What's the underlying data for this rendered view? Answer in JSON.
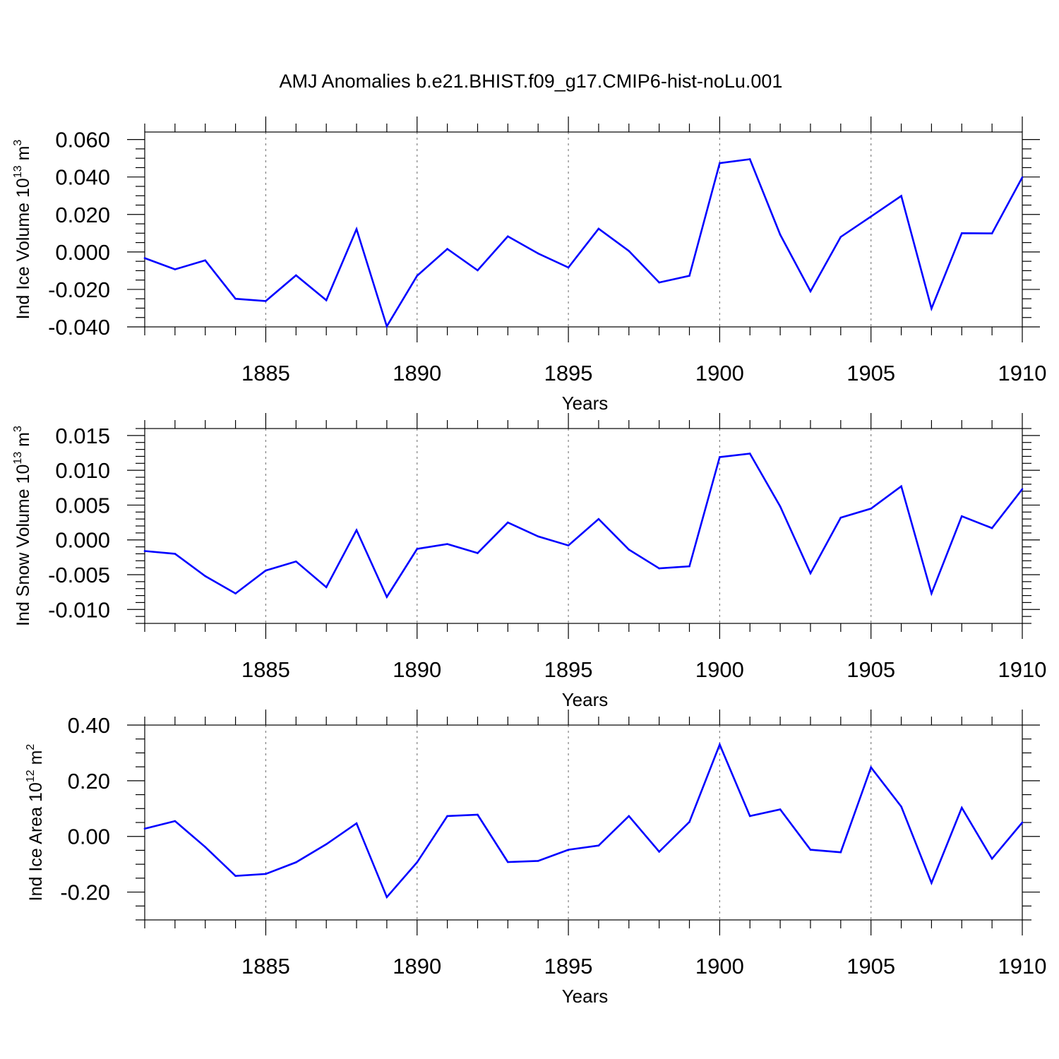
{
  "title": "AMJ Anomalies b.e21.BHIST.f09_g17.CMIP6-hist-noLu.001",
  "colors": {
    "series": "#0000ff",
    "axis": "#000000",
    "grid": "#808080"
  },
  "chart_data": [
    {
      "type": "line",
      "ylabel": "Ind Ice Volume 10",
      "ylabel_exp": "13",
      "ylabel_unit": " m",
      "ylabel_unit_exp": "3",
      "xlabel": "Years",
      "xlim": [
        1881,
        1910
      ],
      "ylim": [
        -0.04,
        0.064
      ],
      "xticks": [
        1885,
        1890,
        1895,
        1900,
        1905,
        1910
      ],
      "yticks": [
        -0.04,
        -0.02,
        0.0,
        0.02,
        0.04,
        0.06
      ],
      "ytick_labels": [
        "-0.040",
        "-0.020",
        "0.000",
        "0.020",
        "0.040",
        "0.060"
      ],
      "y_minor_step": 0.005,
      "grid_x": true,
      "x": [
        1881,
        1882,
        1883,
        1884,
        1885,
        1886,
        1887,
        1888,
        1889,
        1890,
        1891,
        1892,
        1893,
        1894,
        1895,
        1896,
        1897,
        1898,
        1899,
        1900,
        1901,
        1902,
        1903,
        1904,
        1905,
        1906,
        1907,
        1908,
        1909,
        1910
      ],
      "values": [
        -0.0033,
        -0.0093,
        -0.0045,
        -0.025,
        -0.0262,
        -0.0125,
        -0.0258,
        0.0122,
        -0.0397,
        -0.0127,
        0.0016,
        -0.0098,
        0.0083,
        -0.0008,
        -0.0083,
        0.0124,
        0.0005,
        -0.0163,
        -0.0127,
        0.0474,
        0.0495,
        0.0092,
        -0.021,
        0.008,
        0.0189,
        0.0299,
        -0.0302,
        0.01,
        0.0099,
        0.0398
      ]
    },
    {
      "type": "line",
      "ylabel": "Ind Snow Volume 10",
      "ylabel_exp": "13",
      "ylabel_unit": " m",
      "ylabel_unit_exp": "3",
      "xlabel": "Years",
      "xlim": [
        1881,
        1910
      ],
      "ylim": [
        -0.012,
        0.016
      ],
      "xticks": [
        1885,
        1890,
        1895,
        1900,
        1905,
        1910
      ],
      "yticks": [
        -0.01,
        -0.005,
        0.0,
        0.005,
        0.01,
        0.015
      ],
      "ytick_labels": [
        "-0.010",
        "-0.005",
        "0.000",
        "0.005",
        "0.010",
        "0.015"
      ],
      "y_minor_step": 0.001,
      "grid_x": true,
      "x": [
        1881,
        1882,
        1883,
        1884,
        1885,
        1886,
        1887,
        1888,
        1889,
        1890,
        1891,
        1892,
        1893,
        1894,
        1895,
        1896,
        1897,
        1898,
        1899,
        1900,
        1901,
        1902,
        1903,
        1904,
        1905,
        1906,
        1907,
        1908,
        1909,
        1910
      ],
      "values": [
        -0.0016,
        -0.002,
        -0.0052,
        -0.0077,
        -0.0044,
        -0.0031,
        -0.0068,
        0.0014,
        -0.0082,
        -0.0013,
        -0.0006,
        -0.0019,
        0.0025,
        0.0005,
        -0.0008,
        0.003,
        -0.0014,
        -0.0041,
        -0.0038,
        0.0119,
        0.0124,
        0.0048,
        -0.0048,
        0.0032,
        0.0045,
        0.0077,
        -0.0077,
        0.0034,
        0.0017,
        0.0073
      ]
    },
    {
      "type": "line",
      "ylabel": "Ind Ice Area 10",
      "ylabel_exp": "12",
      "ylabel_unit": " m",
      "ylabel_unit_exp": "2",
      "xlabel": "Years",
      "xlim": [
        1881,
        1910
      ],
      "ylim": [
        -0.3,
        0.4
      ],
      "xticks": [
        1885,
        1890,
        1895,
        1900,
        1905,
        1910
      ],
      "yticks": [
        -0.2,
        0.0,
        0.2,
        0.4
      ],
      "ytick_labels": [
        "-0.20",
        "0.00",
        "0.20",
        "0.40"
      ],
      "y_minor_step": 0.05,
      "grid_x": true,
      "x": [
        1881,
        1882,
        1883,
        1884,
        1885,
        1886,
        1887,
        1888,
        1889,
        1890,
        1891,
        1892,
        1893,
        1894,
        1895,
        1896,
        1897,
        1898,
        1899,
        1900,
        1901,
        1902,
        1903,
        1904,
        1905,
        1906,
        1907,
        1908,
        1909,
        1910
      ],
      "values": [
        0.028,
        0.055,
        -0.038,
        -0.142,
        -0.135,
        -0.093,
        -0.028,
        0.047,
        -0.218,
        -0.093,
        0.073,
        0.078,
        -0.092,
        -0.088,
        -0.048,
        -0.033,
        0.073,
        -0.055,
        0.052,
        0.33,
        0.073,
        0.097,
        -0.048,
        -0.057,
        0.248,
        0.107,
        -0.167,
        0.103,
        -0.08,
        0.05
      ]
    }
  ]
}
